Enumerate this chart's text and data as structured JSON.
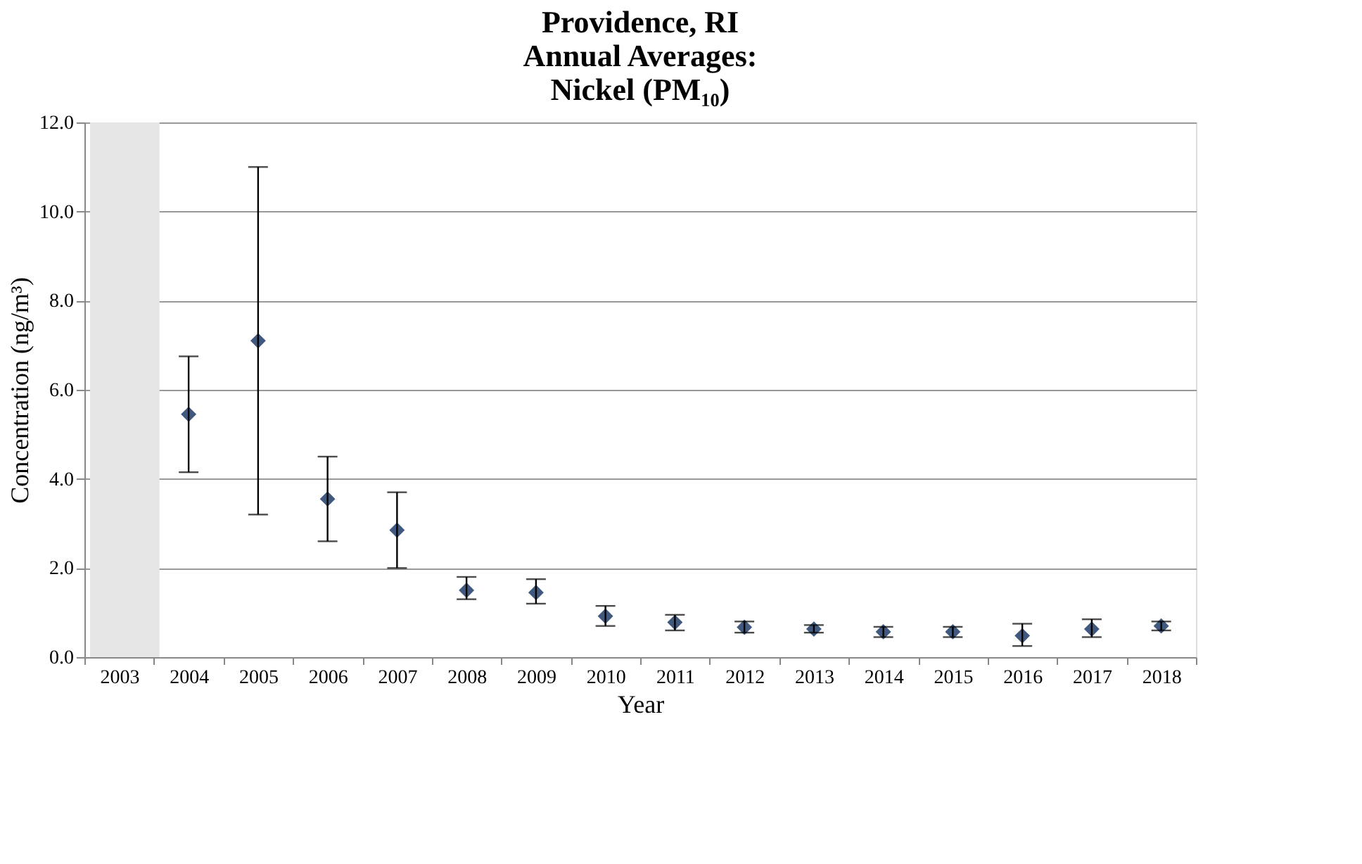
{
  "chart_data": {
    "type": "scatter",
    "title": [
      "Providence, RI",
      "Annual Averages:",
      "Nickel (PM₁₀)"
    ],
    "xlabel": "Year",
    "ylabel": "Concentration (ng/m³)",
    "categories": [
      "2003",
      "2004",
      "2005",
      "2006",
      "2007",
      "2008",
      "2009",
      "2010",
      "2011",
      "2012",
      "2013",
      "2014",
      "2015",
      "2016",
      "2017",
      "2018"
    ],
    "series": [
      {
        "color": "#41597f",
        "values": [
          null,
          5.45,
          7.1,
          3.55,
          2.85,
          1.5,
          1.45,
          0.92,
          0.78,
          0.67,
          0.63,
          0.57,
          0.57,
          0.48,
          0.63,
          0.7
        ],
        "errors": [
          null,
          [
            4.15,
            6.75
          ],
          [
            3.2,
            11.0
          ],
          [
            2.6,
            4.5
          ],
          [
            2.0,
            3.7
          ],
          [
            1.3,
            1.8
          ],
          [
            1.2,
            1.75
          ],
          [
            0.7,
            1.15
          ],
          [
            0.6,
            0.95
          ],
          [
            0.55,
            0.8
          ],
          [
            0.55,
            0.72
          ],
          [
            0.45,
            0.68
          ],
          [
            0.45,
            0.68
          ],
          [
            0.25,
            0.75
          ],
          [
            0.45,
            0.85
          ],
          [
            0.6,
            0.8
          ]
        ]
      }
    ],
    "ylim": [
      0,
      12
    ],
    "yticks": [
      {
        "value": 0,
        "label": "0.0"
      },
      {
        "value": 2,
        "label": "2.0"
      },
      {
        "value": 4,
        "label": "4.0"
      },
      {
        "value": 6,
        "label": "6.0"
      },
      {
        "value": 8,
        "label": "8.0"
      },
      {
        "value": 10,
        "label": "10.0"
      },
      {
        "value": 12,
        "label": "12.0"
      }
    ],
    "bands": [
      {
        "axis": "x",
        "from": "2003",
        "to": "2003",
        "color": "#e6e6e6"
      }
    ],
    "grid": "y",
    "marker": "diamond"
  }
}
